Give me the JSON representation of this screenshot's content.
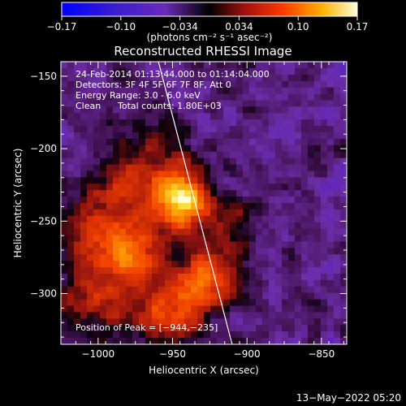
{
  "colorbar": {
    "tick_labels": [
      "−0.17",
      "−0.10",
      "−0.034",
      "0.034",
      "0.10",
      "0.17"
    ],
    "units_label": "(photons cm⁻² s⁻¹ asec⁻²)",
    "range": [
      -0.17,
      0.17
    ]
  },
  "title": "Reconstructed RHESSI Image",
  "info": {
    "line1": "24-Feb-2014 01:13:44.000 to 01:14:04.000",
    "line2": "Detectors: 3F 4F 5F 6F 7F 8F, Att 0",
    "line3": "Energy Range: 3.0 - 6.0 keV",
    "line4_a": "Clean",
    "line4_b": "Total counts: 1.80E+03",
    "peak": "Position of Peak = [−944,−235]"
  },
  "axes": {
    "xlabel": "Heliocentric X (arcsec)",
    "ylabel": "Heliocentric Y (arcsec)",
    "x_range": [
      -1025,
      -833
    ],
    "y_range": [
      -335,
      -140
    ],
    "x_ticks": [
      {
        "value": -1000,
        "label": "−1000"
      },
      {
        "value": -950,
        "label": "−950"
      },
      {
        "value": -900,
        "label": "−900"
      },
      {
        "value": -850,
        "label": "−850"
      }
    ],
    "y_ticks": [
      {
        "value": -150,
        "label": "−150"
      },
      {
        "value": -200,
        "label": "−200"
      },
      {
        "value": -250,
        "label": "−250"
      },
      {
        "value": -300,
        "label": "−300"
      }
    ]
  },
  "limb_line": {
    "x1": -960,
    "y1": -138,
    "x2": -910,
    "y2": -335
  },
  "peak_position": {
    "x": -944,
    "y": -235
  },
  "footer": "13−May−2022 05:20"
}
